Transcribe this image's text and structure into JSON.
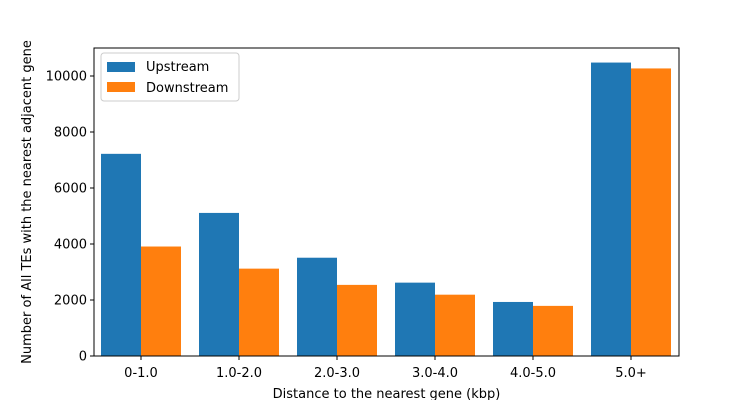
{
  "chart_data": {
    "type": "bar",
    "title": "",
    "xlabel": "Distance to the nearest gene (kbp)",
    "ylabel": "Number of All TEs with the nearest adjacent gene",
    "categories": [
      "0-1.0",
      "1.0-2.0",
      "2.0-3.0",
      "3.0-4.0",
      "4.0-5.0",
      "5.0+"
    ],
    "series": [
      {
        "name": "Upstream",
        "color": "#1f77b4",
        "values": [
          7220,
          5110,
          3510,
          2620,
          1930,
          10480
        ]
      },
      {
        "name": "Downstream",
        "color": "#ff7f0e",
        "values": [
          3910,
          3120,
          2540,
          2190,
          1790,
          10270
        ]
      }
    ],
    "ylim": [
      0,
      11000
    ],
    "yticks": [
      0,
      2000,
      4000,
      6000,
      8000,
      10000
    ],
    "grid": false,
    "legend_position": "top-left"
  }
}
